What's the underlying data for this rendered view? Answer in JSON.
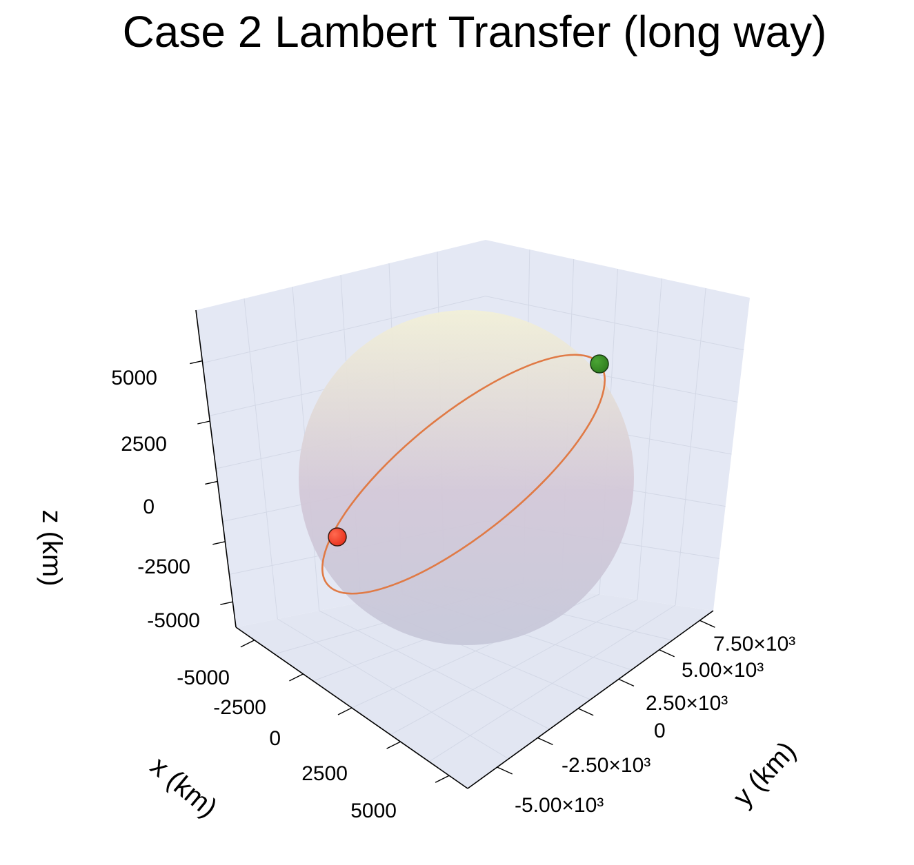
{
  "chart_data": {
    "type": "scatter3d",
    "title": "Case 2 Lambert Transfer (long way)",
    "xlabel": "x (km)",
    "ylabel": "y (km)",
    "zlabel": "z (km)",
    "x_ticks": [
      "-5000",
      "-2500",
      "0",
      "2500",
      "5000"
    ],
    "y_ticks": [
      "-5.00×10³",
      "-2.50×10³",
      "0",
      "2.50×10³",
      "5.00×10³",
      "7.50×10³"
    ],
    "z_ticks": [
      "-5000",
      "-2500",
      "0",
      "2500",
      "5000"
    ],
    "grid": true,
    "central_body": {
      "shape": "sphere",
      "colors": [
        "#f2f0d8",
        "#d3c8d8",
        "#c7c8da"
      ]
    },
    "series": [
      {
        "type": "line",
        "shape": "closed-orbit",
        "color": "#e07a45"
      }
    ],
    "points": [
      {
        "color": "#e8301c"
      },
      {
        "color": "#2f7d1f"
      }
    ],
    "colors": {
      "pane": "#e4e8f4",
      "grid": "#d3d8e6",
      "axis": "#000000"
    }
  }
}
